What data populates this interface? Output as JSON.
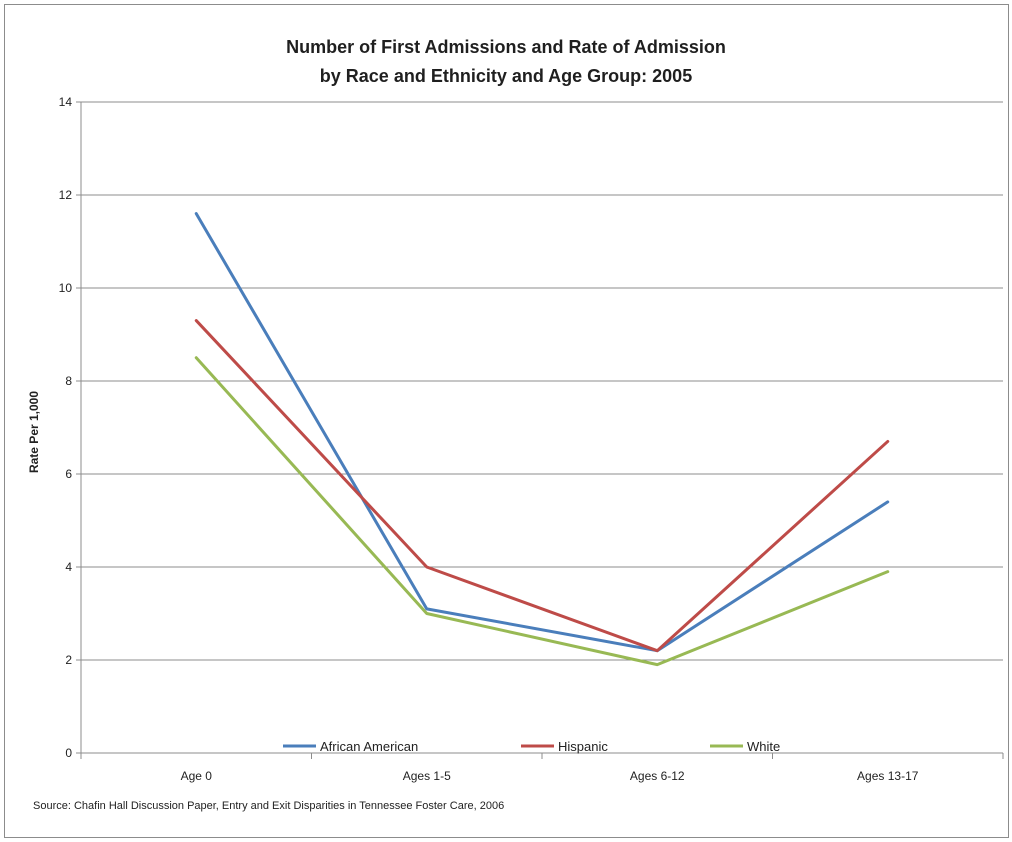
{
  "chart_data": {
    "type": "line",
    "title": "Number of First Admissions and Rate of Admission",
    "subtitle": "by Race and Ethnicity and Age Group: 2005",
    "ylabel": "Rate Per 1,000",
    "xlabel": "",
    "categories": [
      "Age 0",
      "Ages 1-5",
      "Ages 6-12",
      "Ages 13-17"
    ],
    "ylim": [
      0,
      14
    ],
    "yticks": [
      "0",
      "2",
      "4",
      "6",
      "8",
      "10",
      "12",
      "14"
    ],
    "grid": true,
    "legend_position": "bottom",
    "series": [
      {
        "name": "African American",
        "color": "#4a7ebb",
        "values": [
          11.6,
          3.1,
          2.2,
          5.4
        ]
      },
      {
        "name": "Hispanic",
        "color": "#be4b48",
        "values": [
          9.3,
          4.0,
          2.2,
          6.7
        ]
      },
      {
        "name": "White",
        "color": "#98b954",
        "values": [
          8.5,
          3.0,
          1.9,
          3.9
        ]
      }
    ],
    "source": "Source: Chafin Hall Discussion Paper, Entry and Exit Disparities  in Tennessee Foster Care, 2006"
  }
}
